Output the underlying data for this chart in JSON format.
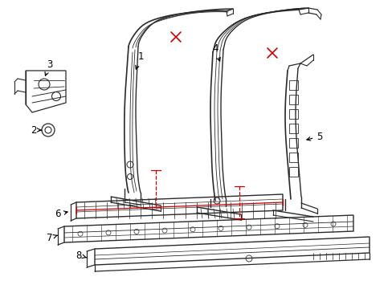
{
  "bg_color": "#ffffff",
  "line_color": "#2a2a2a",
  "red_color": "#cc0000",
  "label_color": "#000000",
  "figsize": [
    4.89,
    3.6
  ],
  "dpi": 100,
  "xlim": [
    0,
    489
  ],
  "ylim": [
    0,
    360
  ]
}
